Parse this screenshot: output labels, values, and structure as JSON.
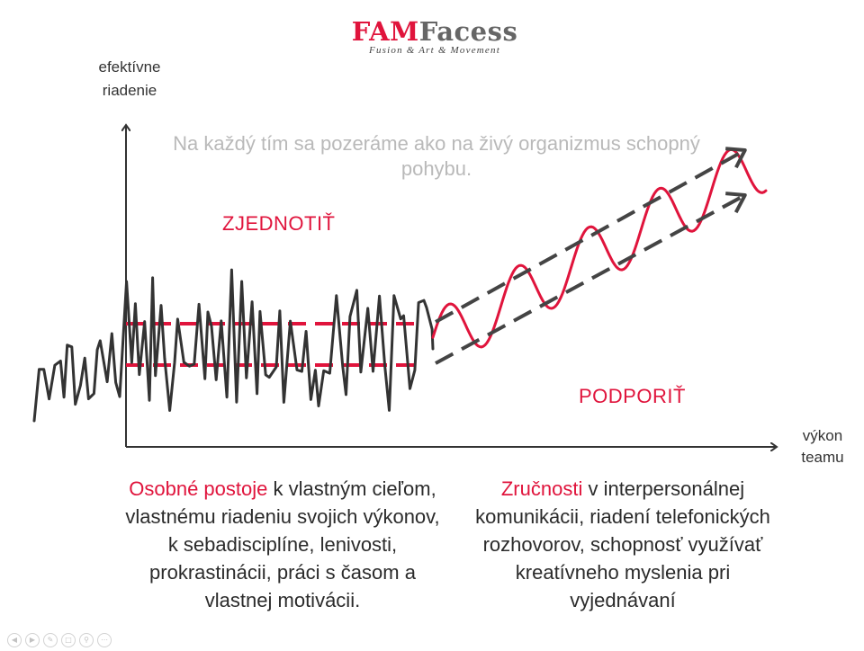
{
  "logo": {
    "brand_red": "FAM",
    "brand_gray": "Facess",
    "tagline": "Fusion & Art & Movement"
  },
  "axes": {
    "y_label_line1": "efektívne",
    "y_label_line2": "riadenie",
    "x_label_line1": "výkon",
    "x_label_line2": "teamu"
  },
  "caption": "Na každý tím sa pozeráme ako na živý organizmus schopný pohybu.",
  "zones": {
    "top": "ZJEDNOTIŤ",
    "bottom": "PODPORIŤ"
  },
  "left_block": {
    "highlight": "Osobné postoje",
    "text": " k vlastným cieľom, vlastnému riadeniu svojich výkonov, k sebadisciplíne, lenivosti, prokrastinácii, práci s časom a vlastnej motivácii."
  },
  "right_block": {
    "highlight": "Zručnosti",
    "text": " v interpersonálnej komunikácii, riadení telefonických rozhovorov, schopnosť využívať kreatívneho myslenia pri vyjednávaní"
  },
  "colors": {
    "accent": "#e0143c",
    "line_dark": "#333333",
    "dashed_gray": "#444444",
    "caption_gray": "#b9b9b9"
  },
  "toolbar_icons": [
    "back-icon",
    "forward-icon",
    "pen-icon",
    "copy-icon",
    "zoom-icon",
    "more-icon"
  ]
}
